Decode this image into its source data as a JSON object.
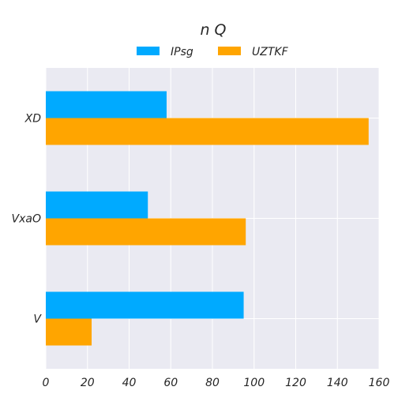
{
  "chart_data": {
    "type": "bar",
    "orientation": "horizontal",
    "title": "n Q",
    "xlabel": "",
    "ylabel": "",
    "categories": [
      "XD",
      "VxaO",
      "V"
    ],
    "series": [
      {
        "name": "IPsg",
        "color": "#00aaff",
        "values": [
          58,
          49,
          95
        ]
      },
      {
        "name": "UZTKF",
        "color": "#ffa500",
        "values": [
          155,
          96,
          22
        ]
      }
    ],
    "xlim": [
      0,
      160
    ],
    "xticks": [
      "0",
      "20",
      "40",
      "60",
      "80",
      "100",
      "120",
      "140",
      "160"
    ],
    "grid": true,
    "legend_position": "top-center",
    "background": "#eaeaf2"
  }
}
